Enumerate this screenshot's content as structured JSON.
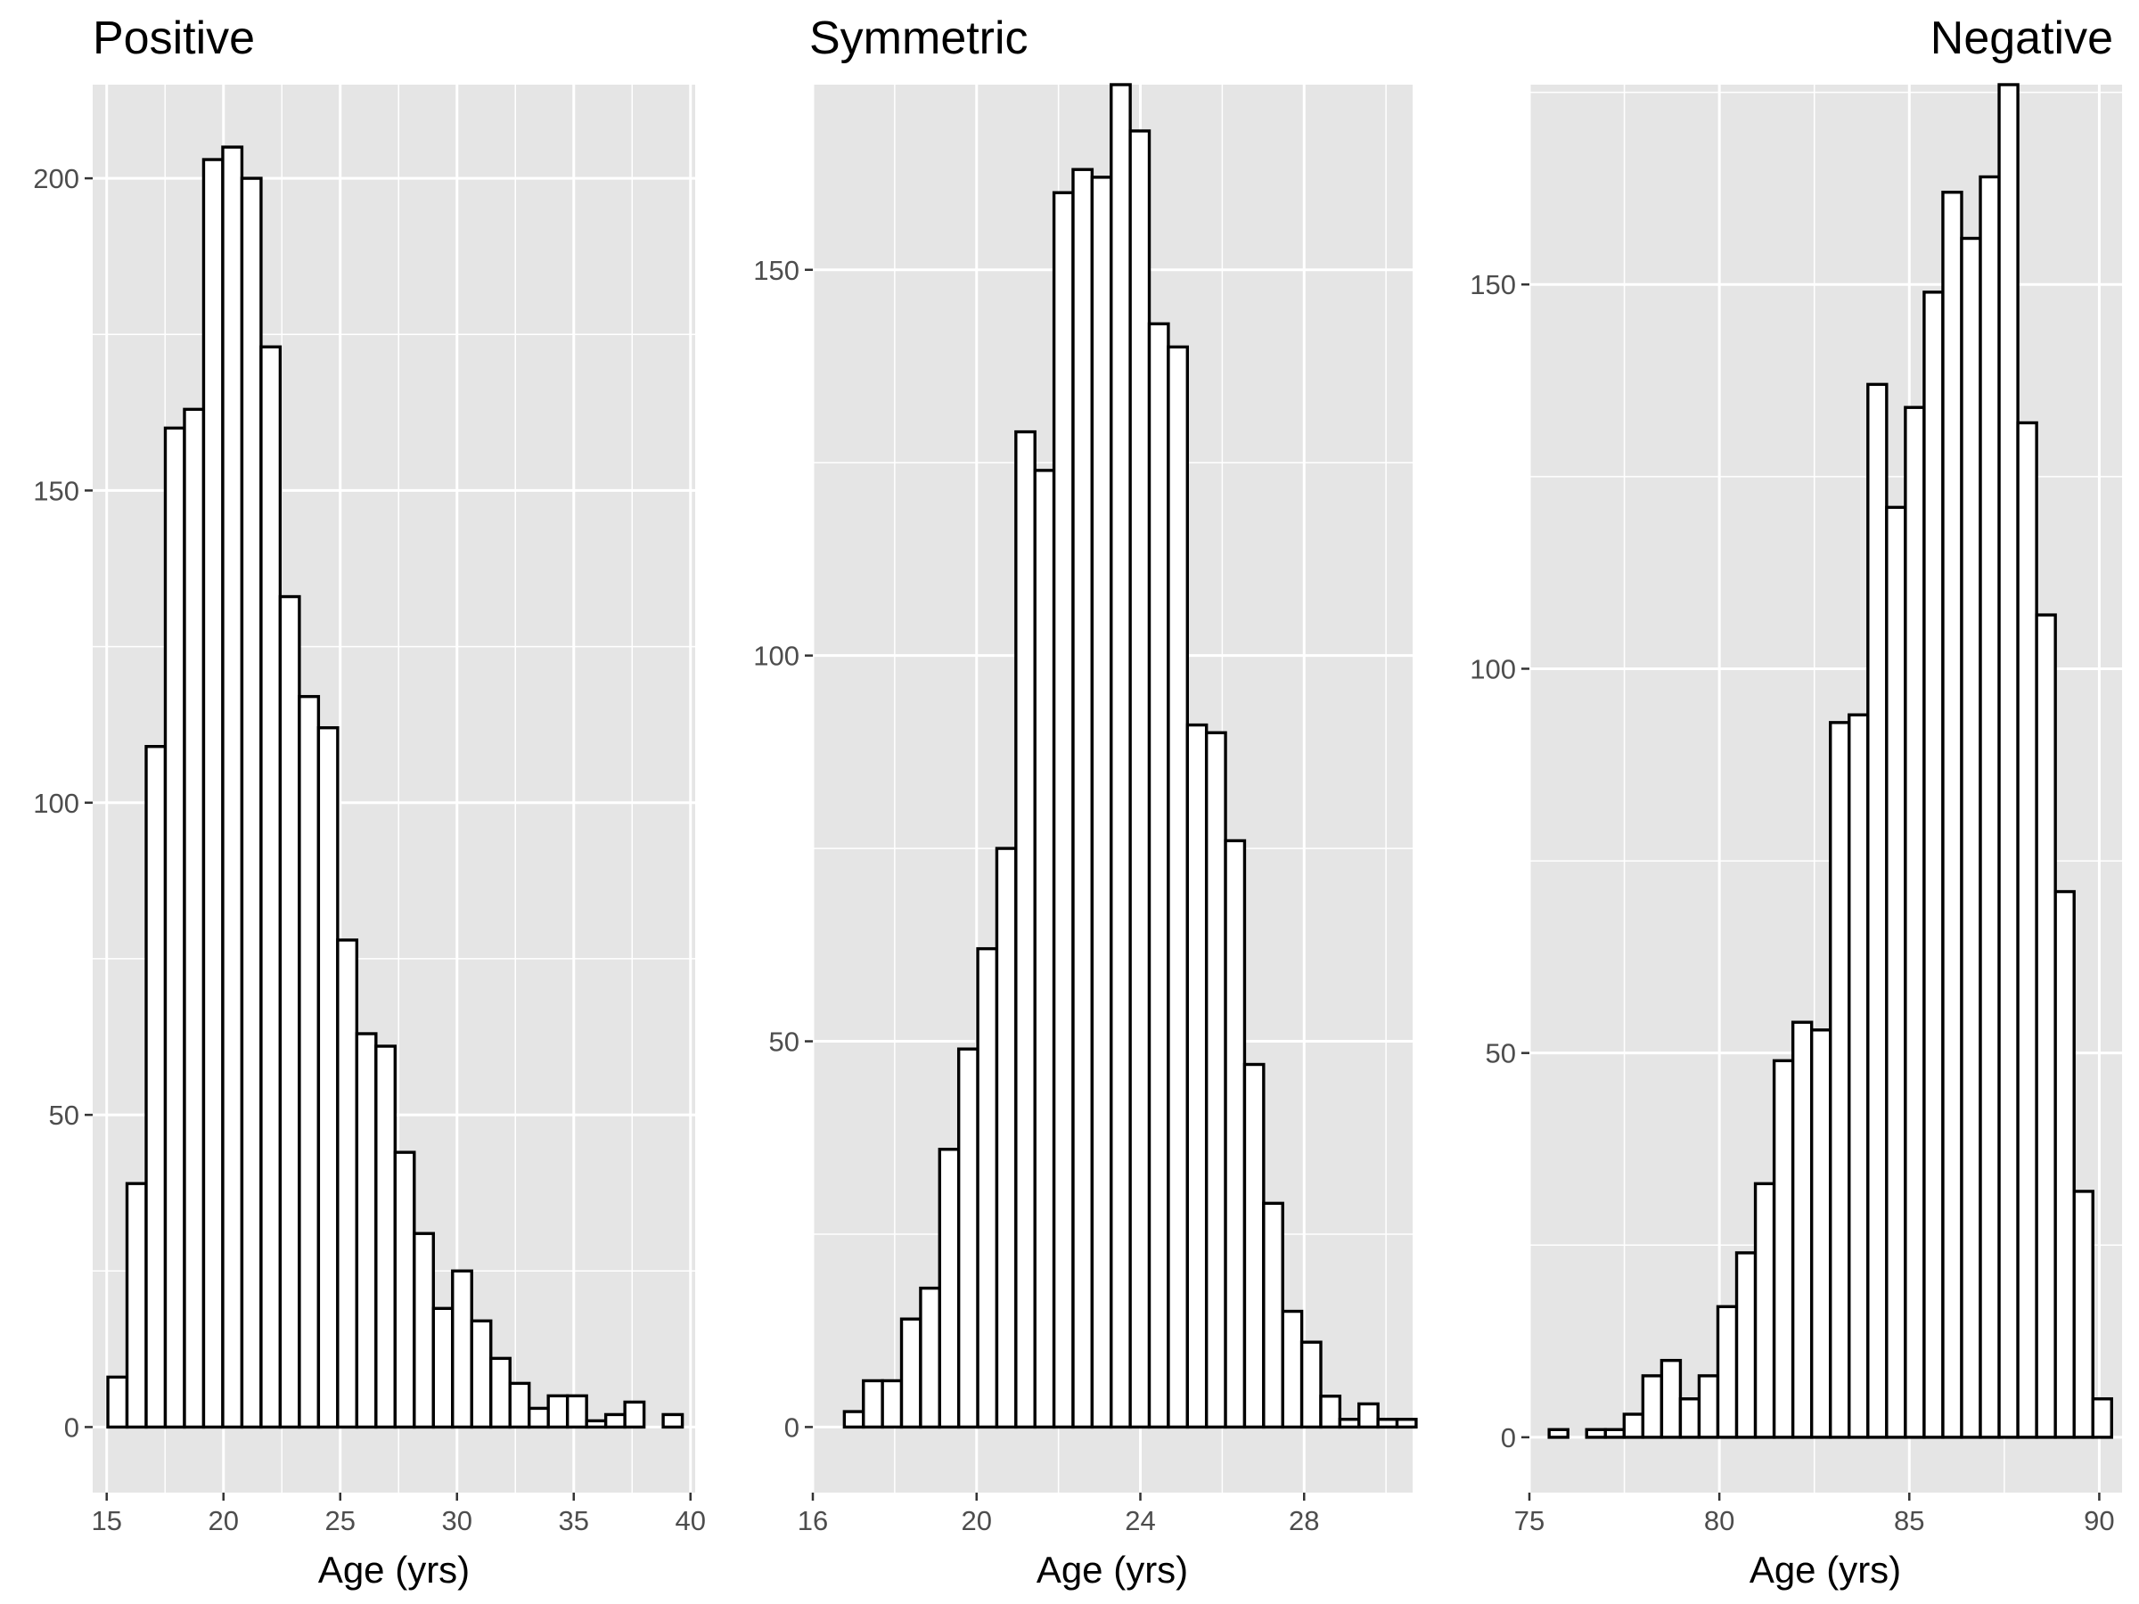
{
  "chart_data": [
    {
      "type": "bar",
      "title": "Positive",
      "xlabel": "Age (yrs)",
      "ylabel": "",
      "xlim": [
        14.4,
        40.2
      ],
      "ylim": [
        -10.5,
        215
      ],
      "xticks": [
        15,
        20,
        25,
        30,
        35,
        40
      ],
      "yticks": [
        0,
        50,
        100,
        150,
        200
      ],
      "bin_start": 15.05,
      "bin_width": 0.82,
      "values": [
        8,
        39,
        109,
        160,
        163,
        203,
        205,
        200,
        173,
        133,
        117,
        112,
        78,
        63,
        61,
        44,
        31,
        19,
        25,
        17,
        11,
        7,
        3,
        5,
        5,
        1,
        2,
        4,
        0,
        2
      ],
      "grid": true
    },
    {
      "type": "bar",
      "title": "Symmetric",
      "xlabel": "Age (yrs)",
      "ylabel": "",
      "xlim": [
        16.0,
        30.65
      ],
      "ylim": [
        -8.5,
        174
      ],
      "xticks": [
        16,
        20,
        24,
        28
      ],
      "yticks": [
        0,
        50,
        100,
        150
      ],
      "bin_start": 16.77,
      "bin_width": 0.4655,
      "values": [
        2,
        6,
        6,
        14,
        18,
        36,
        49,
        62,
        75,
        129,
        124,
        160,
        163,
        162,
        174,
        168,
        143,
        140,
        91,
        90,
        76,
        47,
        29,
        15,
        11,
        4,
        1,
        3,
        1,
        1
      ],
      "grid": true
    },
    {
      "type": "bar",
      "title": "Negative",
      "xlabel": "Age (yrs)",
      "ylabel": "",
      "xlim": [
        75.0,
        90.6
      ],
      "ylim": [
        -7.2,
        176
      ],
      "xticks": [
        75,
        80,
        85,
        90
      ],
      "yticks": [
        0,
        50,
        100,
        150
      ],
      "bin_start": 75.52,
      "bin_width": 0.4935,
      "values": [
        1,
        0,
        1,
        1,
        3,
        8,
        10,
        5,
        8,
        17,
        24,
        33,
        49,
        54,
        53,
        93,
        94,
        137,
        121,
        134,
        149,
        162,
        156,
        164,
        176,
        132,
        107,
        71,
        32,
        5
      ],
      "grid": true
    }
  ]
}
